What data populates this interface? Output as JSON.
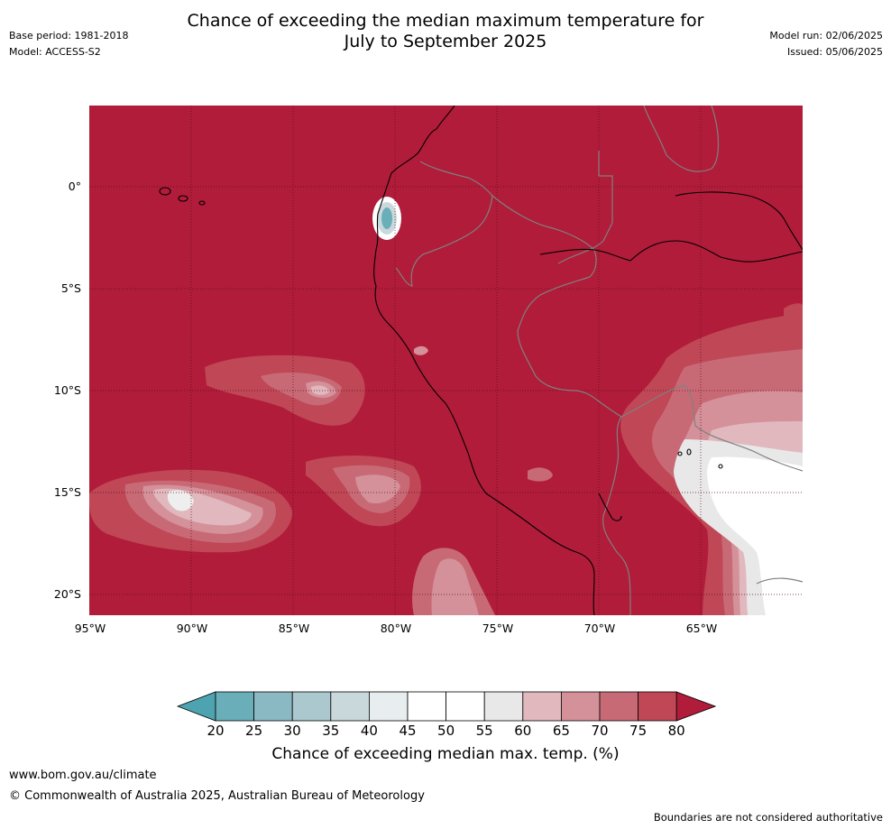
{
  "header": {
    "title_line1": "Chance of exceeding the median maximum temperature for",
    "title_line2": "July to September 2025",
    "base_period": "Base period: 1981-2018",
    "model": "Model: ACCESS-S2",
    "model_run": "Model run: 02/06/2025",
    "issued": "Issued: 05/06/2025"
  },
  "map": {
    "y_ticks": [
      "0°",
      "5°S",
      "10°S",
      "15°S",
      "20°S"
    ],
    "x_ticks": [
      "95°W",
      "90°W",
      "85°W",
      "80°W",
      "75°W",
      "70°W",
      "65°W"
    ],
    "background_color": "#b01c39",
    "coastline_color": "#000000",
    "border_color": "#808080"
  },
  "colorbar": {
    "ticks": [
      "20",
      "25",
      "30",
      "35",
      "40",
      "45",
      "50",
      "55",
      "60",
      "65",
      "70",
      "75",
      "80"
    ],
    "colors": [
      "#6aaeb9",
      "#8ab9c3",
      "#aac8cd",
      "#c9d8da",
      "#e8eef0",
      "#ffffff",
      "#ffffff",
      "#e9e8e8",
      "#e0b8bd",
      "#d4919a",
      "#c86a76",
      "#bf4756"
    ],
    "low_extend_color": "#4da3b0",
    "high_extend_color": "#b01c39",
    "title": "Chance of exceeding median max. temp. (%)"
  },
  "footer": {
    "url": "www.bom.gov.au/climate",
    "copyright": "© Commonwealth of Australia 2025, Australian Bureau of Meteorology",
    "disclaimer": "Boundaries are not considered authoritative"
  }
}
